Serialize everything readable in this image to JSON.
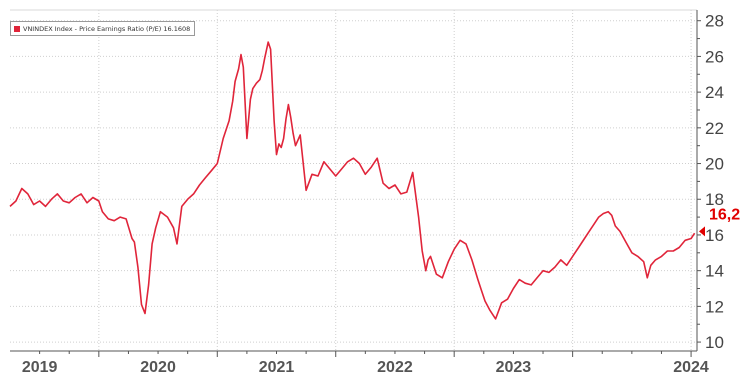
{
  "chart_data": {
    "type": "line",
    "legend_text": "VNINDEX Index - Price Earnings Ratio (P/E) 16.1608",
    "legend_placement": "top-left",
    "last_value_label": "16,2",
    "last_value": 16.2,
    "ylim": [
      9.5,
      28.6
    ],
    "xlim": [
      2018.25,
      2024.05
    ],
    "y_ticks": [
      10,
      12,
      14,
      16,
      18,
      20,
      22,
      24,
      26,
      28
    ],
    "y_tick_labels": [
      "10",
      "12",
      "14",
      "16",
      "18",
      "20",
      "22",
      "24",
      "26",
      "28"
    ],
    "x_ticks": [
      2019,
      2020,
      2021,
      2022,
      2023,
      2024
    ],
    "x_tick_labels": [
      "2019",
      "2020",
      "2021",
      "2022",
      "2023",
      "2024"
    ],
    "grid": true,
    "colors": {
      "line": "#e0253a",
      "label": "#e00000",
      "axis": "#555555",
      "grid": "#cfcfcf"
    },
    "series": [
      {
        "x": [
          2018.25,
          2018.3,
          2018.35,
          2018.4,
          2018.45,
          2018.5,
          2018.55,
          2018.6,
          2018.65,
          2018.7,
          2018.75,
          2018.8,
          2018.85,
          2018.9,
          2018.95,
          2019.0,
          2019.03,
          2019.08,
          2019.13,
          2019.18,
          2019.23,
          2019.28,
          2019.3,
          2019.33,
          2019.36,
          2019.39,
          2019.42,
          2019.45,
          2019.48,
          2019.52,
          2019.58,
          2019.63,
          2019.66,
          2019.7,
          2019.75,
          2019.8,
          2019.85,
          2019.9,
          2019.95,
          2020.0,
          2020.05,
          2020.1,
          2020.13,
          2020.15,
          2020.18,
          2020.2,
          2020.22,
          2020.25,
          2020.28,
          2020.3,
          2020.33,
          2020.36,
          2020.38,
          2020.4,
          2020.43,
          2020.45,
          2020.48,
          2020.5,
          2020.52,
          2020.54,
          2020.56,
          2020.58,
          2020.6,
          2020.62,
          2020.64,
          2020.66,
          2020.7,
          2020.75,
          2020.8,
          2020.85,
          2020.9,
          2020.95,
          2021.0,
          2021.05,
          2021.1,
          2021.15,
          2021.2,
          2021.25,
          2021.3,
          2021.35,
          2021.4,
          2021.45,
          2021.5,
          2021.55,
          2021.6,
          2021.65,
          2021.7,
          2021.73,
          2021.76,
          2021.78,
          2021.8,
          2021.85,
          2021.9,
          2021.95,
          2022.0,
          2022.05,
          2022.1,
          2022.15,
          2022.2,
          2022.23,
          2022.26,
          2022.3,
          2022.35,
          2022.4,
          2022.45,
          2022.5,
          2022.55,
          2022.6,
          2022.65,
          2022.7,
          2022.75,
          2022.8,
          2022.85,
          2022.9,
          2022.95,
          2023.0,
          2023.05,
          2023.1,
          2023.15,
          2023.18,
          2023.22,
          2023.26,
          2023.3,
          2023.33,
          2023.36,
          2023.4,
          2023.45,
          2023.5,
          2023.55,
          2023.6,
          2023.63,
          2023.66,
          2023.7,
          2023.75,
          2023.8,
          2023.85,
          2023.9,
          2023.95,
          2024.0,
          2024.03
        ],
        "y": [
          17.6,
          17.9,
          18.6,
          18.3,
          17.7,
          17.9,
          17.6,
          18.0,
          18.3,
          17.9,
          17.8,
          18.1,
          18.3,
          17.8,
          18.1,
          17.9,
          17.3,
          16.9,
          16.8,
          17.0,
          16.9,
          15.8,
          15.6,
          14.2,
          12.1,
          11.6,
          13.2,
          15.5,
          16.4,
          17.3,
          17.0,
          16.4,
          15.5,
          17.6,
          18.0,
          18.3,
          18.8,
          19.2,
          19.6,
          20.0,
          21.4,
          22.4,
          23.5,
          24.6,
          25.3,
          26.1,
          25.4,
          21.4,
          23.6,
          24.2,
          24.5,
          24.7,
          25.2,
          25.9,
          26.8,
          26.4,
          22.4,
          20.5,
          21.1,
          20.9,
          21.4,
          22.5,
          23.3,
          22.6,
          21.7,
          21.0,
          21.6,
          18.5,
          19.4,
          19.3,
          20.1,
          19.7,
          19.3,
          19.7,
          20.1,
          20.3,
          20.0,
          19.4,
          19.8,
          20.3,
          18.9,
          18.6,
          18.8,
          18.3,
          18.4,
          19.5,
          17.0,
          15.1,
          14.0,
          14.6,
          14.8,
          13.8,
          13.6,
          14.5,
          15.2,
          15.7,
          15.5,
          14.6,
          13.5,
          12.9,
          12.3,
          11.8,
          11.3,
          12.2,
          12.4,
          13.0,
          13.5,
          13.3,
          13.2,
          13.6,
          14.0,
          13.9,
          14.2,
          14.6,
          14.3,
          14.8,
          15.3,
          15.8,
          16.3,
          16.6,
          17.0,
          17.2,
          17.3,
          17.1,
          16.5,
          16.2,
          15.6,
          15.0,
          14.8,
          14.5,
          13.6,
          14.3,
          14.6,
          14.8,
          15.1,
          15.1,
          15.3,
          15.7,
          15.8,
          16.1
        ]
      }
    ]
  }
}
